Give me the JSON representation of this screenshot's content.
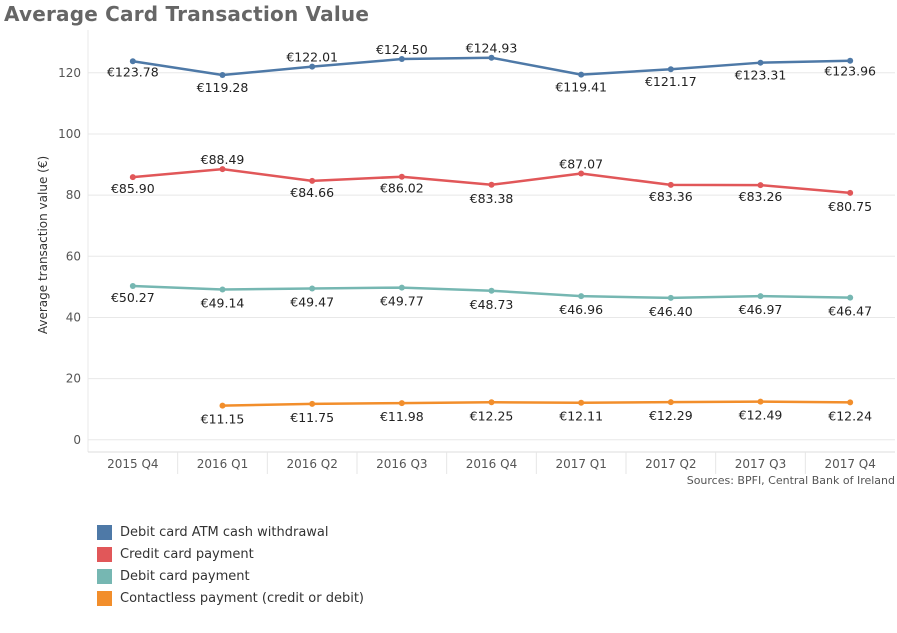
{
  "chart_data": {
    "type": "line",
    "title": "Average Card Transaction Value",
    "ylabel": "Average transaction value (€)",
    "xlabel": "",
    "source": "Sources: BPFI, Central Bank of Ireland",
    "categories": [
      "2015 Q4",
      "2016 Q1",
      "2016 Q2",
      "2016 Q3",
      "2016 Q4",
      "2017 Q1",
      "2017 Q2",
      "2017 Q3",
      "2017 Q4"
    ],
    "ylim": [
      -4,
      134
    ],
    "yticks": [
      0,
      20,
      40,
      60,
      80,
      100,
      120
    ],
    "grid": true,
    "legend_position": "bottom-left",
    "series": [
      {
        "name": "Debit card ATM cash withdrawal",
        "color": "#4e79a7",
        "values": [
          123.78,
          119.28,
          122.01,
          124.5,
          124.93,
          119.41,
          121.17,
          123.31,
          123.96
        ],
        "labels": [
          "€123.78",
          "€119.28",
          "€122.01",
          "€124.50",
          "€124.93",
          "€119.41",
          "€121.17",
          "€123.31",
          "€123.96"
        ]
      },
      {
        "name": "Credit card payment",
        "color": "#e15759",
        "values": [
          85.9,
          88.49,
          84.66,
          86.02,
          83.38,
          87.07,
          83.36,
          83.26,
          80.75
        ],
        "labels": [
          "€85.90",
          "€88.49",
          "€84.66",
          "€86.02",
          "€83.38",
          "€87.07",
          "€83.36",
          "€83.26",
          "€80.75"
        ]
      },
      {
        "name": "Debit card payment",
        "color": "#76b7b2",
        "values": [
          50.27,
          49.14,
          49.47,
          49.77,
          48.73,
          46.96,
          46.4,
          46.97,
          46.47
        ],
        "labels": [
          "€50.27",
          "€49.14",
          "€49.47",
          "€49.77",
          "€48.73",
          "€46.96",
          "€46.40",
          "€46.97",
          "€46.47"
        ]
      },
      {
        "name": "Contactless payment (credit or debit)",
        "color": "#f28e2b",
        "values": [
          null,
          11.15,
          11.75,
          11.98,
          12.25,
          12.11,
          12.29,
          12.49,
          12.24
        ],
        "labels": [
          "",
          "€11.15",
          "€11.75",
          "€11.98",
          "€12.25",
          "€12.11",
          "€12.29",
          "€12.49",
          "€12.24"
        ]
      }
    ]
  }
}
